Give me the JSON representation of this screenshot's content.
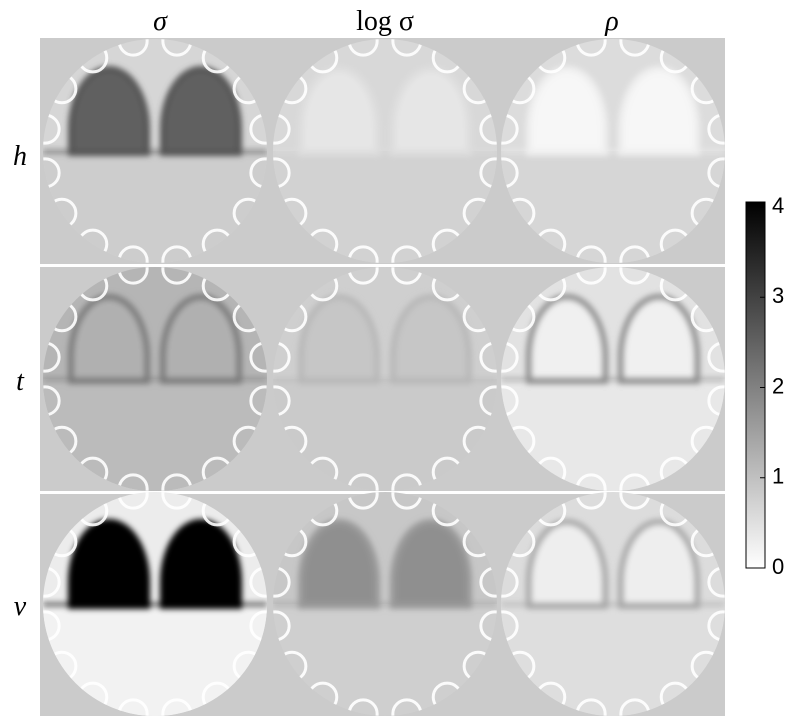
{
  "columns": [
    "σ",
    "log σ",
    "ρ"
  ],
  "rows": [
    "h",
    "t",
    "v"
  ],
  "colorbar": {
    "lim": [
      0,
      4
    ],
    "ticks": [
      0,
      1,
      2,
      3,
      4
    ]
  }
}
